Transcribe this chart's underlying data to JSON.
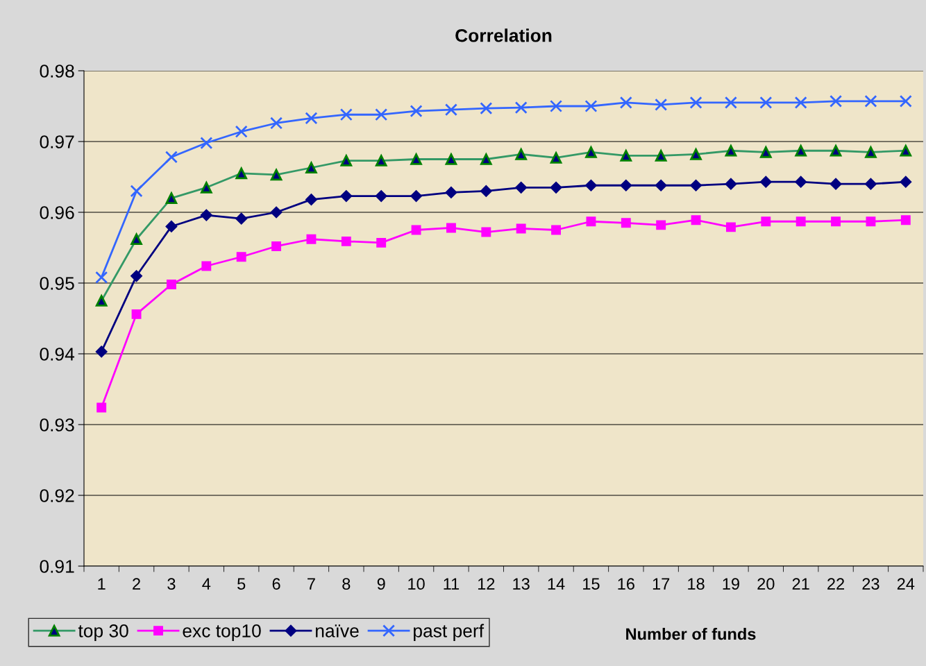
{
  "chart_data": {
    "type": "line",
    "title": "Correlation",
    "xlabel": "Number of funds",
    "categories": [
      "1",
      "2",
      "3",
      "4",
      "5",
      "6",
      "7",
      "8",
      "9",
      "10",
      "11",
      "12",
      "13",
      "14",
      "15",
      "16",
      "17",
      "18",
      "19",
      "20",
      "21",
      "22",
      "23",
      "24"
    ],
    "series": [
      {
        "name": "top 30",
        "color": "#339966",
        "marker": "triangle",
        "values": [
          0.9475,
          0.9562,
          0.962,
          0.9635,
          0.9655,
          0.9653,
          0.9663,
          0.9673,
          0.9673,
          0.9675,
          0.9675,
          0.9675,
          0.9682,
          0.9677,
          0.9685,
          0.968,
          0.968,
          0.9682,
          0.9687,
          0.9685,
          0.9687,
          0.9687,
          0.9685,
          0.9687
        ]
      },
      {
        "name": "exc top10",
        "color": "#ff00ff",
        "marker": "square",
        "values": [
          0.9324,
          0.9456,
          0.9498,
          0.9524,
          0.9537,
          0.9552,
          0.9562,
          0.9559,
          0.9557,
          0.9575,
          0.9578,
          0.9572,
          0.9577,
          0.9575,
          0.9587,
          0.9585,
          0.9582,
          0.9589,
          0.9579,
          0.9587,
          0.9587,
          0.9587,
          0.9587,
          0.9589
        ]
      },
      {
        "name": "naïve",
        "color": "#000080",
        "marker": "diamond",
        "values": [
          0.9403,
          0.951,
          0.958,
          0.9596,
          0.9591,
          0.96,
          0.9618,
          0.9623,
          0.9623,
          0.9623,
          0.9628,
          0.963,
          0.9635,
          0.9635,
          0.9638,
          0.9638,
          0.9638,
          0.9638,
          0.964,
          0.9643,
          0.9643,
          0.964,
          0.964,
          0.9643
        ]
      },
      {
        "name": "past perf",
        "color": "#3366ff",
        "marker": "cross",
        "values": [
          0.9508,
          0.963,
          0.9678,
          0.9698,
          0.9714,
          0.9726,
          0.9733,
          0.9738,
          0.9738,
          0.9743,
          0.9745,
          0.9747,
          0.9748,
          0.975,
          0.975,
          0.9755,
          0.9752,
          0.9755,
          0.9755,
          0.9755,
          0.9755,
          0.9757,
          0.9757,
          0.9757
        ]
      }
    ],
    "ylim": [
      0.91,
      0.98
    ],
    "yticks": [
      {
        "value": 0.91,
        "label": "0.91"
      },
      {
        "value": 0.92,
        "label": "0.92"
      },
      {
        "value": 0.93,
        "label": "0.93"
      },
      {
        "value": 0.94,
        "label": "0.94"
      },
      {
        "value": 0.95,
        "label": "0.95"
      },
      {
        "value": 0.96,
        "label": "0.96"
      },
      {
        "value": 0.97,
        "label": "0.97"
      },
      {
        "value": 0.98,
        "label": "0.98"
      }
    ],
    "grid": "y",
    "legend": "bottom left",
    "line_style": "solid"
  }
}
